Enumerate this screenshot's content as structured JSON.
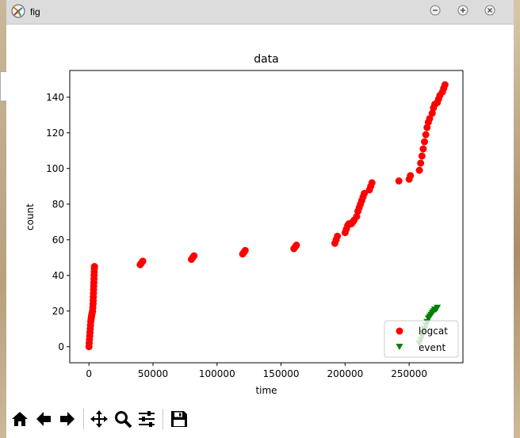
{
  "window": {
    "title": "fig",
    "icon": "matplotlib-figure-icon",
    "buttons": [
      "minimize-icon",
      "maximize-icon",
      "close-icon"
    ]
  },
  "toolbar": {
    "buttons": [
      {
        "name": "home-button",
        "icon": "home-icon"
      },
      {
        "name": "back-button",
        "icon": "arrow-left-icon"
      },
      {
        "name": "forward-button",
        "icon": "arrow-right-icon"
      },
      {
        "name": "pan-button",
        "icon": "move-icon"
      },
      {
        "name": "zoom-button",
        "icon": "magnifier-icon"
      },
      {
        "name": "configure-subplots-button",
        "icon": "sliders-icon"
      },
      {
        "name": "save-button",
        "icon": "floppy-disk-icon"
      }
    ]
  },
  "chart_data": {
    "type": "scatter",
    "title": "data",
    "xlabel": "time",
    "ylabel": "count",
    "xlim": [
      -15000,
      292000
    ],
    "ylim": [
      -9,
      155
    ],
    "xticks": [
      0,
      50000,
      100000,
      150000,
      200000,
      250000
    ],
    "xtick_labels": [
      "0",
      "50000",
      "100000",
      "150000",
      "200000",
      "250000"
    ],
    "yticks": [
      0,
      20,
      40,
      60,
      80,
      100,
      120,
      140
    ],
    "ytick_labels": [
      "0",
      "20",
      "40",
      "60",
      "80",
      "100",
      "120",
      "140"
    ],
    "grid": false,
    "legend_position": "lower-right",
    "series": [
      {
        "name": "logcat",
        "marker": "circle",
        "color": "#ff0000",
        "points": [
          [
            0,
            0
          ],
          [
            200,
            2
          ],
          [
            400,
            4
          ],
          [
            600,
            6
          ],
          [
            800,
            8
          ],
          [
            1000,
            10
          ],
          [
            1200,
            12
          ],
          [
            1400,
            14
          ],
          [
            1600,
            15
          ],
          [
            1800,
            16
          ],
          [
            2000,
            17
          ],
          [
            2200,
            18
          ],
          [
            2500,
            19
          ],
          [
            2800,
            20
          ],
          [
            3000,
            22
          ],
          [
            3200,
            24
          ],
          [
            3300,
            26
          ],
          [
            3400,
            28
          ],
          [
            3500,
            30
          ],
          [
            3600,
            32
          ],
          [
            3700,
            34
          ],
          [
            3800,
            36
          ],
          [
            3900,
            38
          ],
          [
            4000,
            40
          ],
          [
            4100,
            42
          ],
          [
            4200,
            44
          ],
          [
            4300,
            45
          ],
          [
            40000,
            46
          ],
          [
            41000,
            47
          ],
          [
            42000,
            48
          ],
          [
            80000,
            49
          ],
          [
            81000,
            50
          ],
          [
            82000,
            51
          ],
          [
            120000,
            52
          ],
          [
            121000,
            53
          ],
          [
            122000,
            54
          ],
          [
            160000,
            55
          ],
          [
            161000,
            56
          ],
          [
            162000,
            57
          ],
          [
            192000,
            58
          ],
          [
            193000,
            60
          ],
          [
            194000,
            62
          ],
          [
            200000,
            64
          ],
          [
            201000,
            66
          ],
          [
            202000,
            68
          ],
          [
            203000,
            69
          ],
          [
            205000,
            69
          ],
          [
            206000,
            70
          ],
          [
            207000,
            71
          ],
          [
            209000,
            73
          ],
          [
            210000,
            76
          ],
          [
            211000,
            78
          ],
          [
            212000,
            80
          ],
          [
            213000,
            82
          ],
          [
            214000,
            84
          ],
          [
            215000,
            86
          ],
          [
            219000,
            88
          ],
          [
            220000,
            90
          ],
          [
            221000,
            92
          ],
          [
            242000,
            93
          ],
          [
            250000,
            94
          ],
          [
            251000,
            96
          ],
          [
            258000,
            99
          ],
          [
            259000,
            103
          ],
          [
            260000,
            107
          ],
          [
            261000,
            111
          ],
          [
            262000,
            115
          ],
          [
            263000,
            119
          ],
          [
            264000,
            123
          ],
          [
            265000,
            126
          ],
          [
            266000,
            128
          ],
          [
            268000,
            131
          ],
          [
            269000,
            134
          ],
          [
            270000,
            136
          ],
          [
            272000,
            137
          ],
          [
            273000,
            139
          ],
          [
            274000,
            141
          ],
          [
            276000,
            143
          ],
          [
            277000,
            145
          ],
          [
            278000,
            147
          ]
        ]
      },
      {
        "name": "event",
        "marker": "triangle-down",
        "color": "#008000",
        "points": [
          [
            258000,
            2
          ],
          [
            259000,
            4
          ],
          [
            260000,
            6
          ],
          [
            261000,
            8
          ],
          [
            262000,
            10
          ],
          [
            263000,
            12
          ],
          [
            264000,
            14
          ],
          [
            265000,
            16
          ],
          [
            266000,
            17
          ],
          [
            267000,
            18
          ],
          [
            268000,
            19
          ],
          [
            269000,
            20
          ],
          [
            270000,
            21
          ],
          [
            271000,
            21
          ],
          [
            272000,
            22
          ]
        ]
      }
    ]
  }
}
